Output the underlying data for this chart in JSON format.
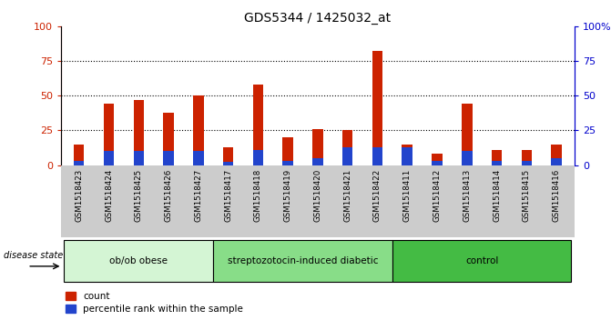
{
  "title": "GDS5344 / 1425032_at",
  "samples": [
    "GSM1518423",
    "GSM1518424",
    "GSM1518425",
    "GSM1518426",
    "GSM1518427",
    "GSM1518417",
    "GSM1518418",
    "GSM1518419",
    "GSM1518420",
    "GSM1518421",
    "GSM1518422",
    "GSM1518411",
    "GSM1518412",
    "GSM1518413",
    "GSM1518414",
    "GSM1518415",
    "GSM1518416"
  ],
  "count": [
    15,
    44,
    47,
    38,
    50,
    13,
    58,
    20,
    26,
    25,
    82,
    15,
    8,
    44,
    11,
    11,
    15
  ],
  "percentile": [
    3,
    10,
    10,
    10,
    10,
    2,
    11,
    3,
    5,
    13,
    13,
    13,
    3,
    10,
    3,
    3,
    5
  ],
  "groups": [
    {
      "label": "ob/ob obese",
      "start": 0,
      "end": 5,
      "color": "#d4f5d4"
    },
    {
      "label": "streptozotocin-induced diabetic",
      "start": 5,
      "end": 11,
      "color": "#88dd88"
    },
    {
      "label": "control",
      "start": 11,
      "end": 17,
      "color": "#44bb44"
    }
  ],
  "ylim": [
    0,
    100
  ],
  "bar_color_red": "#cc2200",
  "bar_color_blue": "#2244cc",
  "plot_bg": "#ffffff",
  "left_axis_color": "#cc2200",
  "right_axis_color": "#0000cc",
  "disease_state_label": "disease state",
  "tick_bg_color": "#cccccc"
}
